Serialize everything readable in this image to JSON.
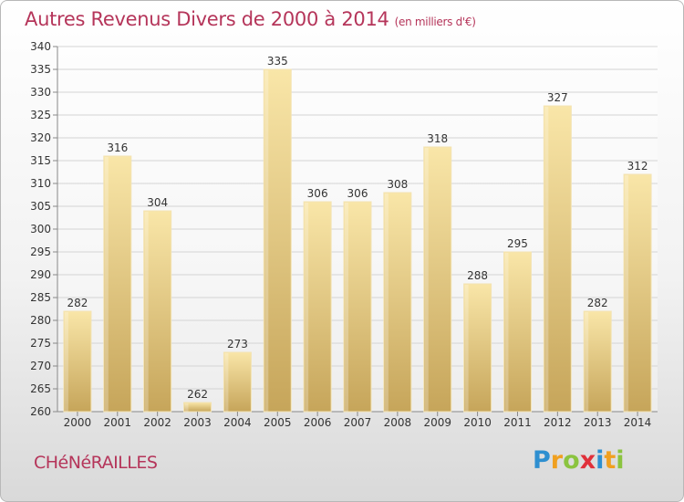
{
  "title": "Autres Revenus Divers de 2000 à 2014",
  "title_unit": "(en milliers d'€)",
  "town": "CHéNéRAILLES",
  "logo": {
    "text": "Proxiti",
    "letters": [
      {
        "ch": "P",
        "color": "#2e8fd0"
      },
      {
        "ch": "r",
        "color": "#f0a020"
      },
      {
        "ch": "o",
        "color": "#8bc43f"
      },
      {
        "ch": "x",
        "color": "#e0303a"
      },
      {
        "ch": "i",
        "color": "#2e8fd0"
      },
      {
        "ch": "t",
        "color": "#f0a020"
      },
      {
        "ch": "i",
        "color": "#8bc43f"
      }
    ]
  },
  "colors": {
    "accent": "#b5355a",
    "bar_light": "#f8e4a6",
    "bar_dark": "#c9a95c"
  },
  "chart_data": {
    "type": "bar",
    "categories": [
      "2000",
      "2001",
      "2002",
      "2003",
      "2004",
      "2005",
      "2006",
      "2007",
      "2008",
      "2009",
      "2010",
      "2011",
      "2012",
      "2013",
      "2014"
    ],
    "values": [
      282,
      316,
      304,
      262,
      273,
      335,
      306,
      306,
      308,
      318,
      288,
      295,
      327,
      282,
      312
    ],
    "ylim": [
      260,
      340
    ],
    "yticks": [
      260,
      265,
      270,
      275,
      280,
      285,
      290,
      295,
      300,
      305,
      310,
      315,
      320,
      325,
      330,
      335,
      340
    ],
    "grid": true,
    "title": "Autres Revenus Divers de 2000 à 2014",
    "xlabel": "",
    "ylabel": ""
  }
}
